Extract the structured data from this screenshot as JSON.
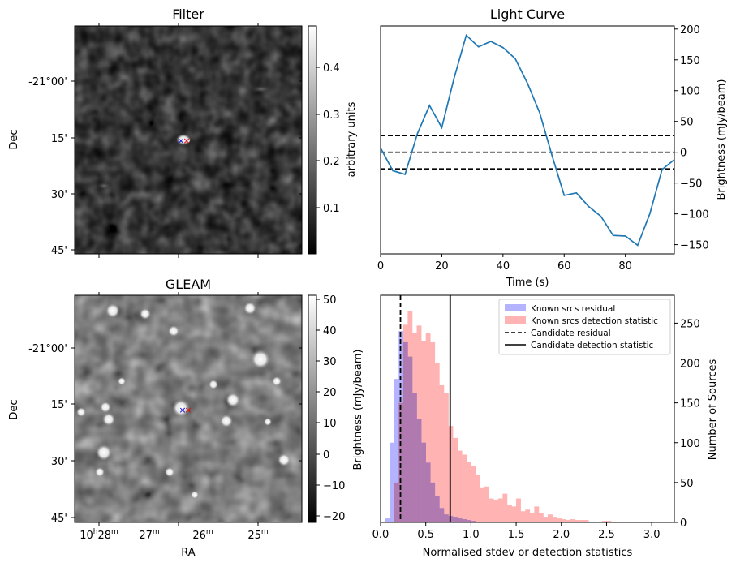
{
  "colors": {
    "line": "#1f77b4",
    "known_residual": "#b3b3ff",
    "known_detection": "#ffb3b3",
    "overlap": "#b07ab0"
  },
  "filter_panel": {
    "title": "Filter",
    "ylabel": "Dec",
    "dec_ticks": [
      "-21°00'",
      "15'",
      "30'",
      "45'"
    ],
    "colorbar_label": "arbitrary units",
    "colorbar_ticks": [
      "0.4",
      "0.3",
      "0.2",
      "0.1"
    ],
    "colorbar_range": [
      0.0,
      0.48
    ]
  },
  "gleam_panel": {
    "title": "GLEAM",
    "ylabel": "Dec",
    "xlabel": "RA",
    "dec_ticks": [
      "-21°00'",
      "15'",
      "30'",
      "45'"
    ],
    "ra_ticks": [
      {
        "hours": "10",
        "minutes": "28",
        "h": "h",
        "m": "m"
      },
      {
        "minutes": "27",
        "m": "m"
      },
      {
        "minutes": "26",
        "m": "m"
      },
      {
        "minutes": "25",
        "m": "m"
      }
    ],
    "colorbar_label": "Brightness (mJy/beam)",
    "colorbar_ticks": [
      "50",
      "40",
      "30",
      "20",
      "10",
      "0",
      "−10",
      "−20"
    ],
    "colorbar_range": [
      -23,
      52
    ]
  },
  "chart_data": [
    {
      "type": "line",
      "title": "Light Curve",
      "xlabel": "Time (s)",
      "ylabel": "Brightness (mJy/beam)",
      "xlim": [
        0,
        96
      ],
      "ylim": [
        -165,
        205
      ],
      "x_ticks": [
        "0",
        "20",
        "40",
        "60",
        "80"
      ],
      "y_ticks": [
        "200",
        "150",
        "100",
        "50",
        "0",
        "−50",
        "−100",
        "−150"
      ],
      "series": [
        {
          "x": [
            0,
            4,
            8,
            12,
            16,
            20,
            24,
            28,
            32,
            36,
            40,
            44,
            48,
            52,
            56,
            60,
            64,
            68,
            72,
            76,
            80,
            84,
            88,
            92,
            96
          ],
          "y": [
            7,
            -30,
            -36,
            30,
            76,
            40,
            120,
            190,
            171,
            180,
            170,
            152,
            112,
            64,
            -5,
            -70,
            -66,
            -88,
            -104,
            -135,
            -136,
            -151,
            -100,
            -28,
            -12
          ]
        }
      ],
      "hlines": [
        {
          "y": 27,
          "style": "dashed"
        },
        {
          "y": 0,
          "style": "dashed"
        },
        {
          "y": -27,
          "style": "dashed"
        }
      ]
    },
    {
      "type": "histogram",
      "xlabel": "Normalised stdev or detection statistics",
      "ylabel": "Number of Sources",
      "xlim": [
        0,
        3.25
      ],
      "ylim": [
        0,
        285
      ],
      "x_ticks": [
        "0.0",
        "0.5",
        "1.0",
        "1.5",
        "2.0",
        "2.5",
        "3.0"
      ],
      "y_ticks": [
        "250",
        "200",
        "150",
        "100",
        "50",
        "0"
      ],
      "bin_width": 0.05,
      "series": [
        {
          "name": "Known srcs residual",
          "bin_start": 0.0,
          "counts": [
            0,
            5,
            100,
            180,
            240,
            226,
            208,
            162,
            130,
            100,
            75,
            50,
            33,
            18,
            10,
            8,
            7,
            5,
            4,
            3,
            2,
            1,
            1,
            1,
            0,
            0,
            0,
            0,
            0,
            0
          ]
        },
        {
          "name": "Known srcs detection statistic",
          "bin_start": 0.0,
          "counts": [
            0,
            0,
            0,
            50,
            150,
            248,
            265,
            238,
            247,
            228,
            238,
            226,
            200,
            172,
            162,
            121,
            106,
            90,
            85,
            76,
            71,
            60,
            44,
            45,
            30,
            28,
            30,
            36,
            22,
            20,
            30,
            14,
            16,
            12,
            20,
            12,
            7,
            10,
            7,
            5,
            4,
            3,
            4,
            3,
            3,
            3,
            1,
            1,
            0,
            2,
            2,
            1,
            0,
            1,
            1,
            0,
            0,
            1,
            0,
            0,
            0,
            1
          ]
        }
      ],
      "vlines": [
        {
          "name": "Candidate residual",
          "x": 0.22,
          "style": "dashed"
        },
        {
          "name": "Candidate detection statistic",
          "x": 0.77,
          "style": "solid"
        }
      ],
      "legend_placement": "top-right"
    }
  ]
}
